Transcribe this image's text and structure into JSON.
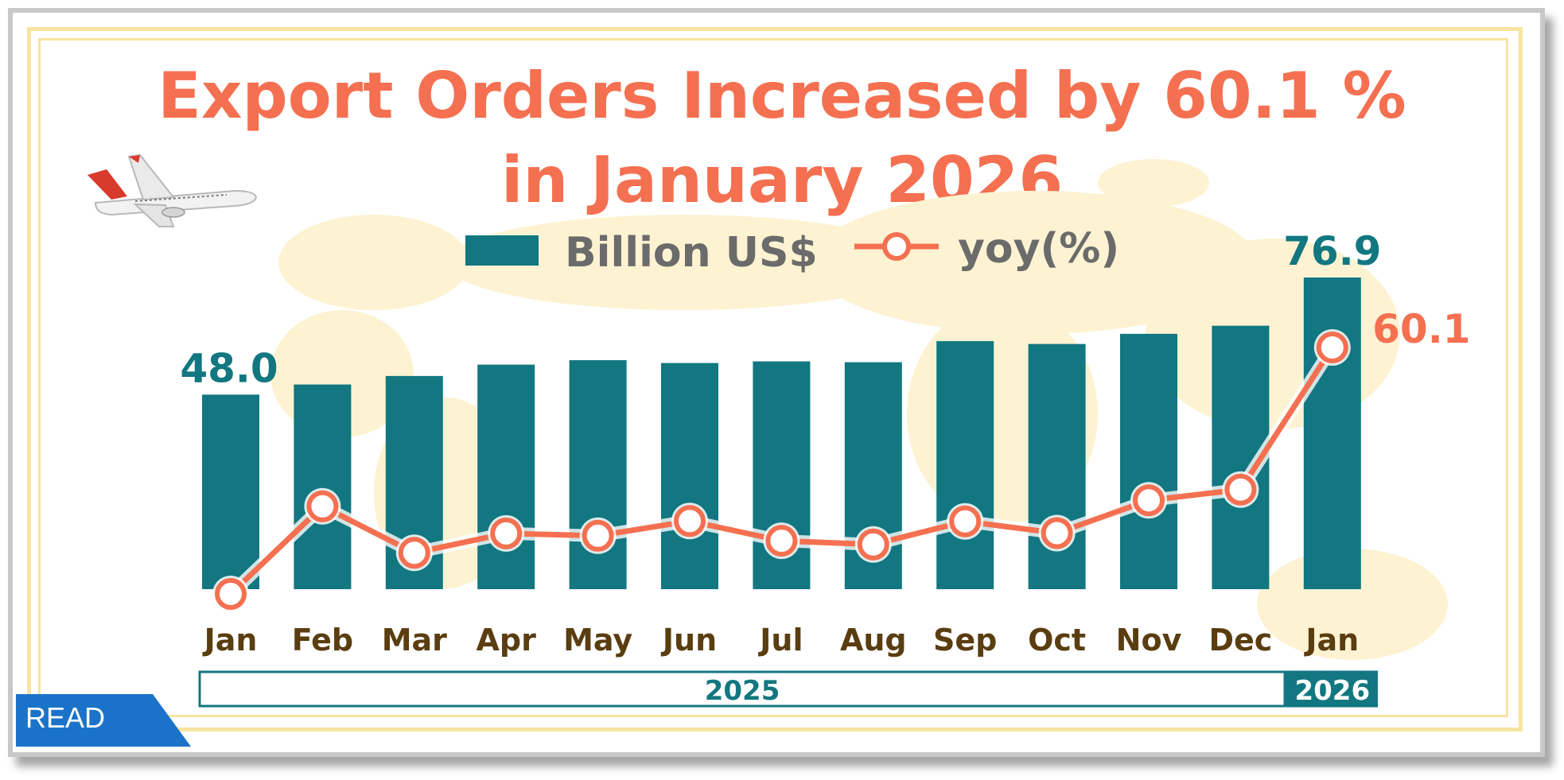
{
  "title_line1": "Export Orders Increased by 60.1 %",
  "title_line2": "in January 2026",
  "badge": "READ",
  "colors": {
    "bar": "#127780",
    "line": "#f47050",
    "title": "#f47050",
    "month": "#5a3d10",
    "year": "#127780"
  },
  "chart_data": {
    "type": "bar",
    "categories": [
      "Jan",
      "Feb",
      "Mar",
      "Apr",
      "May",
      "Jun",
      "Jul",
      "Aug",
      "Sep",
      "Oct",
      "Nov",
      "Dec",
      "Jan"
    ],
    "year_groups": [
      {
        "label": "2025",
        "span": 12
      },
      {
        "label": "2026",
        "span": 1
      }
    ],
    "series": [
      {
        "name": "Billion US$",
        "type": "bar",
        "values": [
          48.0,
          50.5,
          52.6,
          55.4,
          56.5,
          55.8,
          56.2,
          56.0,
          61.2,
          60.5,
          63.0,
          65.0,
          76.9
        ]
      },
      {
        "name": "yoy(%)",
        "type": "line",
        "values": [
          -13.6,
          12.6,
          -1.3,
          4.5,
          3.8,
          8.2,
          2.3,
          1.2,
          8.1,
          4.6,
          14.4,
          17.6,
          60.1
        ]
      }
    ],
    "data_labels": [
      {
        "series": "Billion US$",
        "index": 0,
        "text": "48.0"
      },
      {
        "series": "Billion US$",
        "index": 12,
        "text": "76.9"
      },
      {
        "series": "yoy(%)",
        "index": 12,
        "text": "60.1"
      }
    ],
    "legend_position": "top",
    "grid": false
  }
}
